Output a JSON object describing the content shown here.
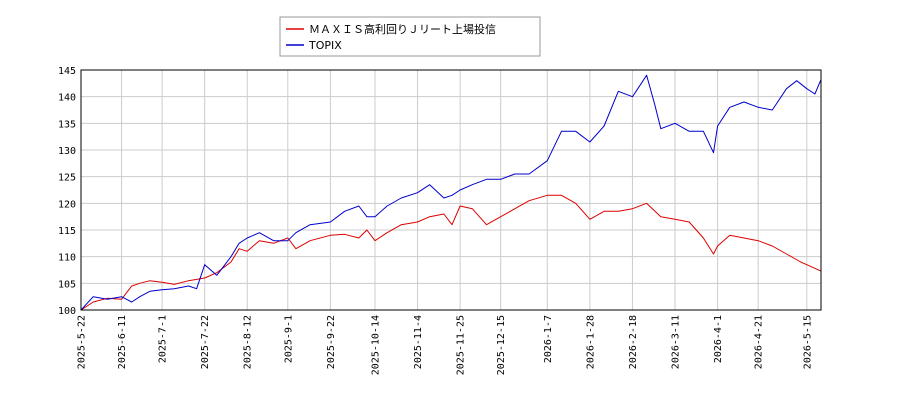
{
  "chart_data": {
    "type": "line",
    "title": "",
    "xlabel": "",
    "ylabel": "",
    "ylim": [
      100,
      145
    ],
    "y_ticks": [
      100,
      105,
      110,
      115,
      120,
      125,
      130,
      135,
      140,
      145
    ],
    "x_range": [
      "2025-05-22",
      "2026-05-22"
    ],
    "x_ticks": [
      "2025-5-22",
      "2025-6-11",
      "2025-7-1",
      "2025-7-22",
      "2025-8-12",
      "2025-9-1",
      "2025-9-22",
      "2025-10-14",
      "2025-11-4",
      "2025-11-25",
      "2025-12-15",
      "2026-1-7",
      "2026-1-28",
      "2026-2-18",
      "2026-3-11",
      "2026-4-1",
      "2026-4-21",
      "2026-5-15"
    ],
    "grid": true,
    "legend_position": "top-center",
    "series": [
      {
        "name": "ＭＡＸＩＳ高利回りＪリート上場投信",
        "color": "#dd0000",
        "points": [
          [
            "2025-05-22",
            100.0
          ],
          [
            "2025-05-28",
            101.5
          ],
          [
            "2025-06-04",
            102.2
          ],
          [
            "2025-06-11",
            102.0
          ],
          [
            "2025-06-16",
            104.5
          ],
          [
            "2025-06-20",
            105.0
          ],
          [
            "2025-06-25",
            105.5
          ],
          [
            "2025-07-01",
            105.2
          ],
          [
            "2025-07-07",
            104.8
          ],
          [
            "2025-07-14",
            105.5
          ],
          [
            "2025-07-22",
            106.0
          ],
          [
            "2025-07-28",
            107.0
          ],
          [
            "2025-08-04",
            109.0
          ],
          [
            "2025-08-08",
            111.5
          ],
          [
            "2025-08-12",
            111.0
          ],
          [
            "2025-08-18",
            113.0
          ],
          [
            "2025-08-25",
            112.5
          ],
          [
            "2025-09-01",
            113.5
          ],
          [
            "2025-09-05",
            111.5
          ],
          [
            "2025-09-12",
            113.0
          ],
          [
            "2025-09-22",
            114.0
          ],
          [
            "2025-09-29",
            114.2
          ],
          [
            "2025-10-06",
            113.5
          ],
          [
            "2025-10-10",
            115.0
          ],
          [
            "2025-10-14",
            113.0
          ],
          [
            "2025-10-20",
            114.5
          ],
          [
            "2025-10-27",
            116.0
          ],
          [
            "2025-11-04",
            116.5
          ],
          [
            "2025-11-10",
            117.5
          ],
          [
            "2025-11-17",
            118.0
          ],
          [
            "2025-11-21",
            116.0
          ],
          [
            "2025-11-25",
            119.5
          ],
          [
            "2025-12-01",
            119.0
          ],
          [
            "2025-12-08",
            116.0
          ],
          [
            "2025-12-15",
            117.5
          ],
          [
            "2025-12-22",
            119.0
          ],
          [
            "2025-12-29",
            120.5
          ],
          [
            "2026-01-07",
            121.5
          ],
          [
            "2026-01-14",
            121.5
          ],
          [
            "2026-01-21",
            120.0
          ],
          [
            "2026-01-28",
            117.0
          ],
          [
            "2026-02-04",
            118.5
          ],
          [
            "2026-02-11",
            118.5
          ],
          [
            "2026-02-18",
            119.0
          ],
          [
            "2026-02-25",
            120.0
          ],
          [
            "2026-03-04",
            117.5
          ],
          [
            "2026-03-11",
            117.0
          ],
          [
            "2026-03-18",
            116.5
          ],
          [
            "2026-03-25",
            113.5
          ],
          [
            "2026-03-30",
            110.5
          ],
          [
            "2026-04-01",
            112.0
          ],
          [
            "2026-04-07",
            114.0
          ],
          [
            "2026-04-14",
            113.5
          ],
          [
            "2026-04-21",
            113.0
          ],
          [
            "2026-04-28",
            112.0
          ],
          [
            "2026-05-05",
            110.5
          ],
          [
            "2026-05-12",
            109.0
          ],
          [
            "2026-05-15",
            108.5
          ],
          [
            "2026-05-22",
            107.3
          ]
        ]
      },
      {
        "name": "TOPIX",
        "color": "#0000cc",
        "points": [
          [
            "2025-05-22",
            100.0
          ],
          [
            "2025-05-28",
            102.5
          ],
          [
            "2025-06-04",
            102.0
          ],
          [
            "2025-06-11",
            102.5
          ],
          [
            "2025-06-16",
            101.5
          ],
          [
            "2025-06-20",
            102.5
          ],
          [
            "2025-06-25",
            103.5
          ],
          [
            "2025-07-01",
            103.8
          ],
          [
            "2025-07-07",
            104.0
          ],
          [
            "2025-07-14",
            104.5
          ],
          [
            "2025-07-18",
            104.0
          ],
          [
            "2025-07-22",
            108.5
          ],
          [
            "2025-07-28",
            106.5
          ],
          [
            "2025-08-04",
            110.0
          ],
          [
            "2025-08-08",
            112.5
          ],
          [
            "2025-08-12",
            113.5
          ],
          [
            "2025-08-18",
            114.5
          ],
          [
            "2025-08-25",
            113.0
          ],
          [
            "2025-09-01",
            113.0
          ],
          [
            "2025-09-05",
            114.5
          ],
          [
            "2025-09-12",
            116.0
          ],
          [
            "2025-09-22",
            116.5
          ],
          [
            "2025-09-29",
            118.5
          ],
          [
            "2025-10-06",
            119.5
          ],
          [
            "2025-10-10",
            117.5
          ],
          [
            "2025-10-14",
            117.5
          ],
          [
            "2025-10-20",
            119.5
          ],
          [
            "2025-10-27",
            121.0
          ],
          [
            "2025-11-04",
            122.0
          ],
          [
            "2025-11-10",
            123.5
          ],
          [
            "2025-11-17",
            121.0
          ],
          [
            "2025-11-21",
            121.5
          ],
          [
            "2025-11-25",
            122.5
          ],
          [
            "2025-12-01",
            123.5
          ],
          [
            "2025-12-08",
            124.5
          ],
          [
            "2025-12-15",
            124.5
          ],
          [
            "2025-12-22",
            125.5
          ],
          [
            "2025-12-29",
            125.5
          ],
          [
            "2026-01-07",
            128.0
          ],
          [
            "2026-01-14",
            133.5
          ],
          [
            "2026-01-21",
            133.5
          ],
          [
            "2026-01-28",
            131.5
          ],
          [
            "2026-02-04",
            134.5
          ],
          [
            "2026-02-11",
            141.0
          ],
          [
            "2026-02-18",
            140.0
          ],
          [
            "2026-02-25",
            144.0
          ],
          [
            "2026-03-01",
            138.5
          ],
          [
            "2026-03-04",
            134.0
          ],
          [
            "2026-03-11",
            135.0
          ],
          [
            "2026-03-18",
            133.5
          ],
          [
            "2026-03-25",
            133.5
          ],
          [
            "2026-03-30",
            129.5
          ],
          [
            "2026-04-01",
            134.5
          ],
          [
            "2026-04-07",
            138.0
          ],
          [
            "2026-04-14",
            139.0
          ],
          [
            "2026-04-21",
            138.0
          ],
          [
            "2026-04-28",
            137.5
          ],
          [
            "2026-05-05",
            141.5
          ],
          [
            "2026-05-10",
            143.0
          ],
          [
            "2026-05-15",
            141.5
          ],
          [
            "2026-05-19",
            140.5
          ],
          [
            "2026-05-22",
            143.2
          ]
        ]
      }
    ]
  }
}
